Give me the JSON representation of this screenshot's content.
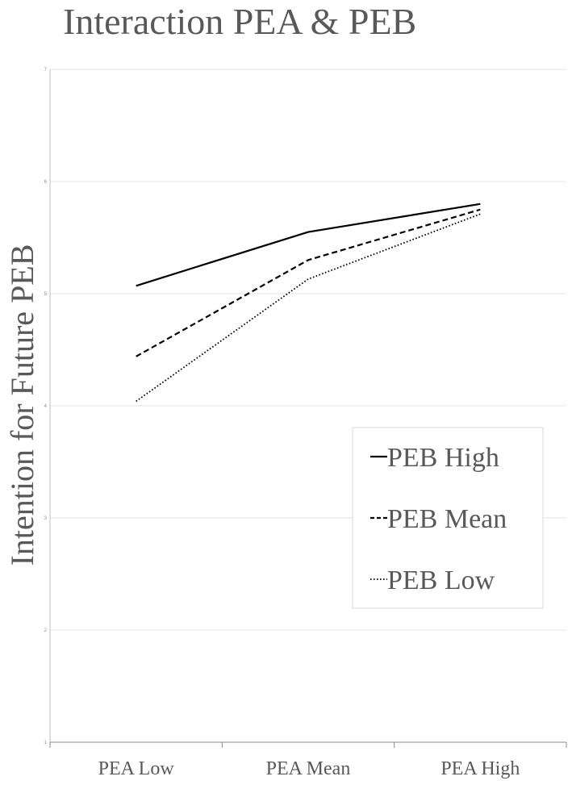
{
  "chart_data": {
    "type": "line",
    "title": "Interaction PEA & PEB",
    "xlabel": "",
    "ylabel": "Intention for Future PEB",
    "categories": [
      "PEA Low",
      "PEA Mean",
      "PEA High"
    ],
    "ylim": [
      1,
      7
    ],
    "yticks": [
      1,
      2,
      3,
      4,
      5,
      6,
      7
    ],
    "grid": true,
    "legend_position": "right",
    "series": [
      {
        "name": "PEB High",
        "values": [
          5.07,
          5.55,
          5.8
        ],
        "dash": "solid",
        "color": "#000000"
      },
      {
        "name": "PEB Mean",
        "values": [
          4.44,
          5.3,
          5.75
        ],
        "dash": "dashed",
        "color": "#000000"
      },
      {
        "name": "PEB Low",
        "values": [
          4.04,
          5.13,
          5.71
        ],
        "dash": "dotted",
        "color": "#000000"
      }
    ]
  }
}
